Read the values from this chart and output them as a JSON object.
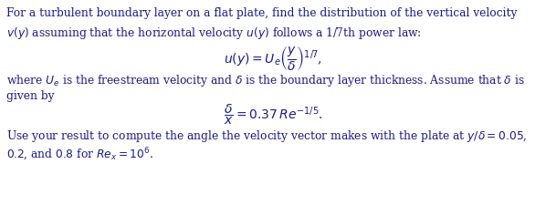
{
  "background_color": "#ffffff",
  "text_color": "#1a1a8c",
  "fig_width": 5.98,
  "fig_height": 2.26,
  "dpi": 100,
  "line1": "For a turbulent boundary layer on a flat plate, find the distribution of the vertical velocity",
  "line2": "$v(y)$ assuming that the horizontal velocity $u(y)$ follows a 1/7th power law:",
  "eq1": "$u(y) = U_e \\left(\\dfrac{y}{\\delta}\\right)^{1/7}$,",
  "line3": "where $U_e$ is the freestream velocity and $\\delta$ is the boundary layer thickness. Assume that $\\delta$ is",
  "line4": "given by",
  "eq2": "$\\dfrac{\\delta}{x} = 0.37\\, Re^{-1/5}$.",
  "line5": "Use your result to compute the angle the velocity vector makes with the plate at $y/\\delta = 0.05$,",
  "line6": "$0.2$, and $0.8$ for $Re_x = 10^6$."
}
